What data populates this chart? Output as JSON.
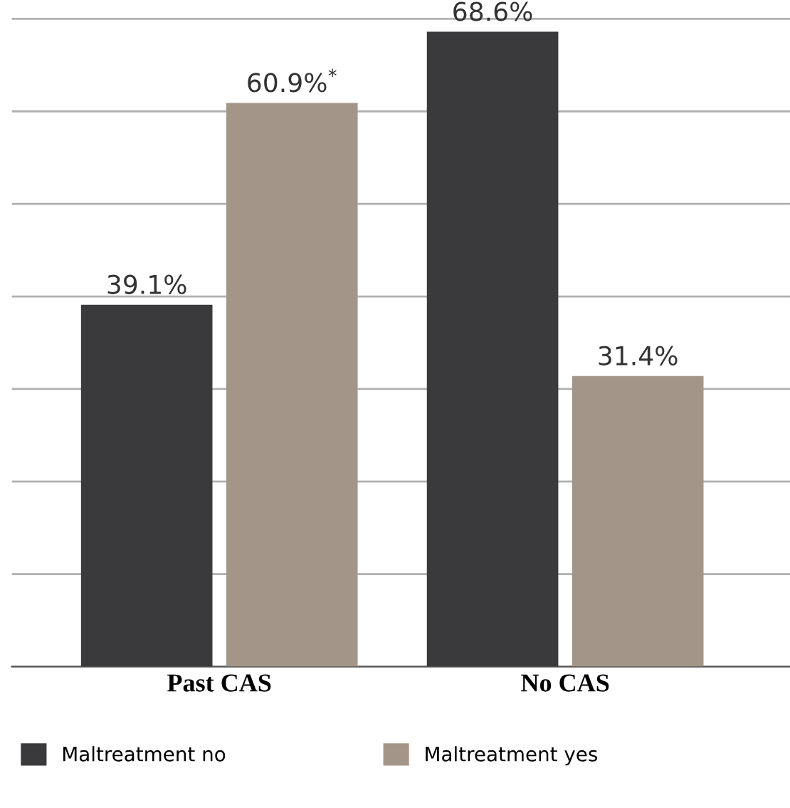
{
  "chart_data": {
    "type": "bar",
    "categories": [
      "Past CAS",
      "No CAS"
    ],
    "series": [
      {
        "name": "Maltreatment no",
        "color": "#3a3a3c",
        "values": [
          39.1,
          68.6
        ],
        "value_labels": [
          "39.1%",
          "68.6%"
        ]
      },
      {
        "name": "Maltreatment yes",
        "color": "#a39689",
        "values": [
          60.9,
          31.4
        ],
        "value_labels": [
          "60.9%$^{*}$",
          "31.4%"
        ]
      }
    ],
    "grid": "y",
    "legend": "bottom",
    "tick_labels": "x"
  }
}
